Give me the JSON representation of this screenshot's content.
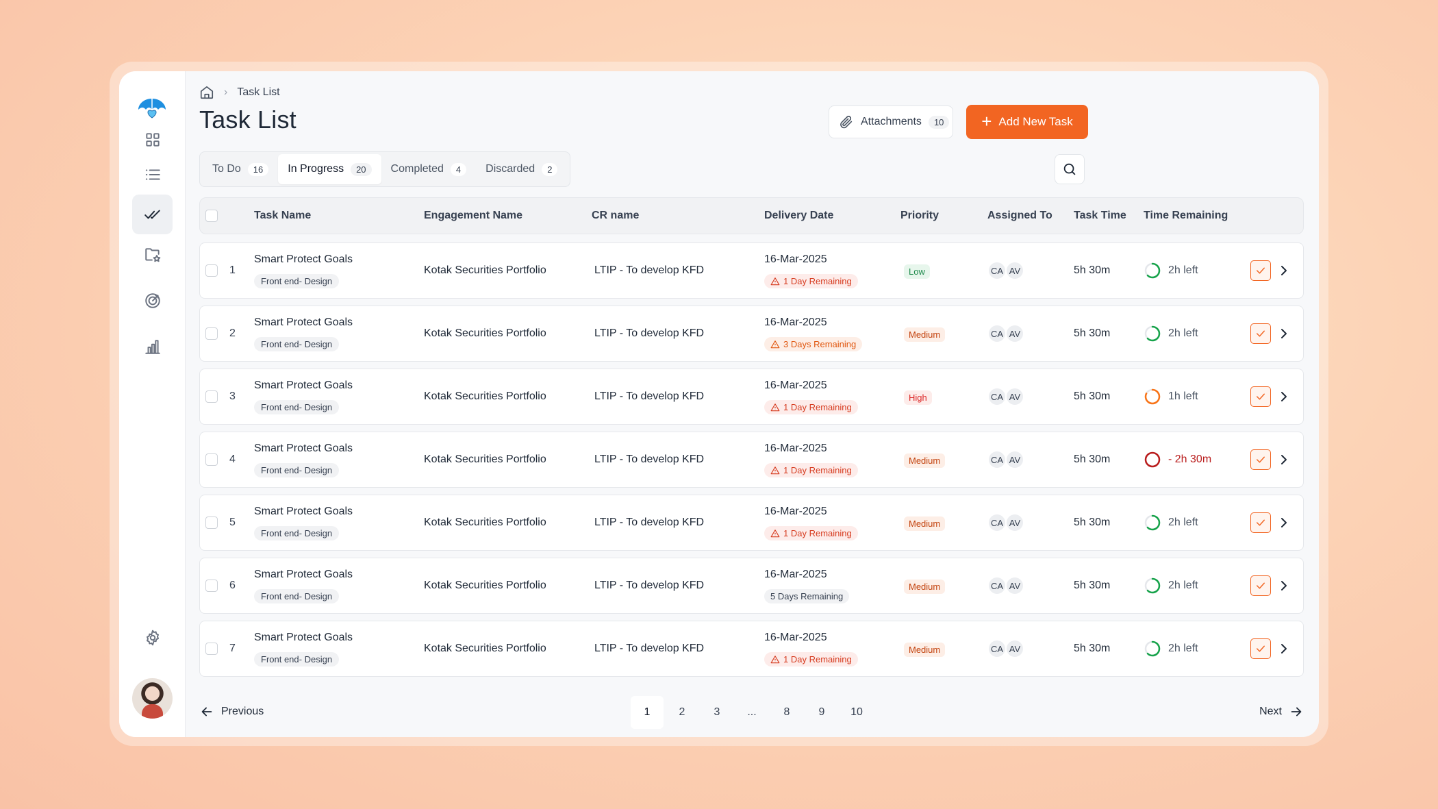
{
  "breadcrumb": {
    "current": "Task List"
  },
  "header": {
    "title": "Task List"
  },
  "actions": {
    "attachments_label": "Attachments",
    "attachments_count": "10",
    "add_label": "Add New Task"
  },
  "tabs": [
    {
      "label": "To Do",
      "count": "16"
    },
    {
      "label": "In Progress",
      "count": "20"
    },
    {
      "label": "Completed",
      "count": "4"
    },
    {
      "label": "Discarded",
      "count": "2"
    }
  ],
  "columns": {
    "task_name": "Task Name",
    "engagement": "Engagement Name",
    "cr": "CR name",
    "delivery": "Delivery Date",
    "priority": "Priority",
    "assigned": "Assigned To",
    "task_time": "Task Time",
    "remaining": "Time Remaining"
  },
  "colors": {
    "accent": "#f26522",
    "low_bg": "#e7f6ec",
    "low_fg": "#1f8a4c",
    "med_bg": "#fdeee6",
    "med_fg": "#c2410c",
    "high_bg": "#fdecea",
    "high_fg": "#dc2626",
    "ring_green": "#16a34a",
    "ring_orange": "#f97316",
    "ring_red": "#b91c1c"
  },
  "rows": [
    {
      "num": "1",
      "task": "Smart Protect Goals",
      "tag": "Front end- Design",
      "engagement": "Kotak Securities Portfolio",
      "cr": "LTIP - To develop KFD",
      "date": "16-Mar-2025",
      "remaining_chip": "1 Day Remaining",
      "chip_style": "alert",
      "priority": "Low",
      "assignees": [
        "CA",
        "AV"
      ],
      "task_time": "5h 30m",
      "time_left": "2h left",
      "progress": 0.62,
      "ring": "green"
    },
    {
      "num": "2",
      "task": "Smart Protect Goals",
      "tag": "Front end- Design",
      "engagement": "Kotak Securities Portfolio",
      "cr": "LTIP - To develop KFD",
      "date": "16-Mar-2025",
      "remaining_chip": "3 Days Remaining",
      "chip_style": "warn",
      "priority": "Medium",
      "assignees": [
        "CA",
        "AV"
      ],
      "task_time": "5h 30m",
      "time_left": "2h left",
      "progress": 0.62,
      "ring": "green"
    },
    {
      "num": "3",
      "task": "Smart Protect Goals",
      "tag": "Front end- Design",
      "engagement": "Kotak Securities Portfolio",
      "cr": "LTIP - To develop KFD",
      "date": "16-Mar-2025",
      "remaining_chip": "1 Day Remaining",
      "chip_style": "alert",
      "priority": "High",
      "assignees": [
        "CA",
        "AV"
      ],
      "task_time": "5h 30m",
      "time_left": "1h left",
      "progress": 0.82,
      "ring": "orange"
    },
    {
      "num": "4",
      "task": "Smart Protect Goals",
      "tag": "Front end- Design",
      "engagement": "Kotak Securities Portfolio",
      "cr": "LTIP - To develop KFD",
      "date": "16-Mar-2025",
      "remaining_chip": "1 Day Remaining",
      "chip_style": "alert",
      "priority": "Medium",
      "assignees": [
        "CA",
        "AV"
      ],
      "task_time": "5h 30m",
      "time_left": "- 2h 30m",
      "progress": 1.0,
      "ring": "red"
    },
    {
      "num": "5",
      "task": "Smart Protect Goals",
      "tag": "Front end- Design",
      "engagement": "Kotak Securities Portfolio",
      "cr": "LTIP - To develop KFD",
      "date": "16-Mar-2025",
      "remaining_chip": "1 Day Remaining",
      "chip_style": "alert",
      "priority": "Medium",
      "assignees": [
        "CA",
        "AV"
      ],
      "task_time": "5h 30m",
      "time_left": "2h left",
      "progress": 0.62,
      "ring": "green"
    },
    {
      "num": "6",
      "task": "Smart Protect Goals",
      "tag": "Front end- Design",
      "engagement": "Kotak Securities Portfolio",
      "cr": "LTIP - To develop KFD",
      "date": "16-Mar-2025",
      "remaining_chip": "5 Days Remaining",
      "chip_style": "neutral",
      "priority": "Medium",
      "assignees": [
        "CA",
        "AV"
      ],
      "task_time": "5h 30m",
      "time_left": "2h left",
      "progress": 0.62,
      "ring": "green"
    },
    {
      "num": "7",
      "task": "Smart Protect Goals",
      "tag": "Front end- Design",
      "engagement": "Kotak Securities Portfolio",
      "cr": "LTIP - To develop KFD",
      "date": "16-Mar-2025",
      "remaining_chip": "1 Day Remaining",
      "chip_style": "alert",
      "priority": "Medium",
      "assignees": [
        "CA",
        "AV"
      ],
      "task_time": "5h 30m",
      "time_left": "2h left",
      "progress": 0.62,
      "ring": "green"
    }
  ],
  "pagination": {
    "prev": "Previous",
    "next": "Next",
    "pages": [
      "1",
      "2",
      "3",
      "...",
      "8",
      "9",
      "10"
    ],
    "current": "1"
  }
}
